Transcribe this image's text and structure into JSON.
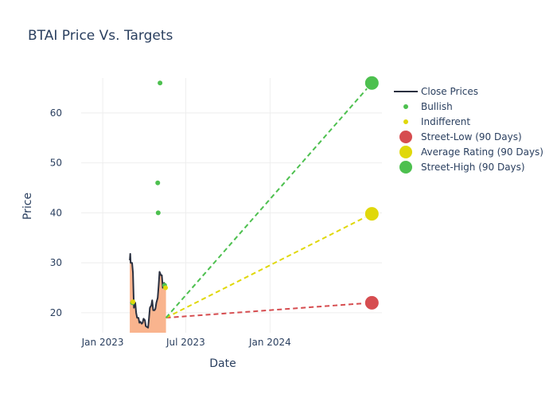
{
  "chart_data": {
    "type": "line",
    "title": "BTAI Price Vs. Targets",
    "xlabel": "Date",
    "ylabel": "Price",
    "xlim": [
      "2022-11-15",
      "2024-09-01"
    ],
    "ylim": [
      16,
      67
    ],
    "x_ticks": [
      {
        "date": "2023-01-01",
        "label": "Jan 2023"
      },
      {
        "date": "2023-07-01",
        "label": "Jul 2023"
      },
      {
        "date": "2024-01-01",
        "label": "Jan 2024"
      }
    ],
    "y_ticks": [
      20,
      30,
      40,
      50,
      60
    ],
    "grid": true,
    "legend_position": "right",
    "series": [
      {
        "name": "Close Prices",
        "kind": "line",
        "color": "#2a3040",
        "fill_color": "#f9b48e",
        "points": [
          [
            "2023-03-01",
            30.5
          ],
          [
            "2023-03-02",
            31.8
          ],
          [
            "2023-03-03",
            30.0
          ],
          [
            "2023-03-06",
            30.0
          ],
          [
            "2023-03-08",
            28.0
          ],
          [
            "2023-03-10",
            21.0
          ],
          [
            "2023-03-13",
            22.0
          ],
          [
            "2023-03-15",
            20.0
          ],
          [
            "2023-03-17",
            19.0
          ],
          [
            "2023-03-20",
            19.0
          ],
          [
            "2023-03-22",
            18.0
          ],
          [
            "2023-03-24",
            18.2
          ],
          [
            "2023-03-27",
            17.8
          ],
          [
            "2023-03-29",
            18.0
          ],
          [
            "2023-03-31",
            18.8
          ],
          [
            "2023-04-03",
            18.5
          ],
          [
            "2023-04-05",
            17.3
          ],
          [
            "2023-04-07",
            17.2
          ],
          [
            "2023-04-10",
            17.0
          ],
          [
            "2023-04-12",
            19.0
          ],
          [
            "2023-04-14",
            21.0
          ],
          [
            "2023-04-17",
            21.5
          ],
          [
            "2023-04-19",
            22.5
          ],
          [
            "2023-04-21",
            20.5
          ],
          [
            "2023-04-24",
            20.5
          ],
          [
            "2023-04-26",
            20.8
          ],
          [
            "2023-04-28",
            22.0
          ],
          [
            "2023-05-01",
            23.0
          ],
          [
            "2023-05-03",
            25.5
          ],
          [
            "2023-05-05",
            28.2
          ],
          [
            "2023-05-08",
            27.5
          ],
          [
            "2023-05-10",
            27.5
          ],
          [
            "2023-05-12",
            25.0
          ],
          [
            "2023-05-15",
            26.0
          ],
          [
            "2023-05-17",
            25.5
          ],
          [
            "2023-05-19",
            25.0
          ]
        ]
      },
      {
        "name": "Bullish",
        "kind": "markers",
        "color": "#4dc04f",
        "points": [
          [
            "2023-03-07",
            22.0
          ],
          [
            "2023-05-01",
            46.0
          ],
          [
            "2023-05-02",
            40.0
          ],
          [
            "2023-05-06",
            66.0
          ],
          [
            "2023-05-16",
            25.5
          ]
        ]
      },
      {
        "name": "Indifferent",
        "kind": "markers",
        "color": "#e0d80a",
        "points": [
          [
            "2023-03-08",
            22.2
          ],
          [
            "2023-05-18",
            25.0
          ]
        ]
      },
      {
        "name": "Street-Low (90 Days)",
        "kind": "target",
        "color": "#d64d50",
        "start": [
          "2023-05-19",
          19.0
        ],
        "end": [
          "2024-08-10",
          22.0
        ]
      },
      {
        "name": "Average Rating (90 Days)",
        "kind": "target",
        "color": "#e0d80a",
        "start": [
          "2023-05-19",
          19.0
        ],
        "end": [
          "2024-08-10",
          39.8
        ]
      },
      {
        "name": "Street-High (90 Days)",
        "kind": "target",
        "color": "#4dc04f",
        "start": [
          "2023-05-19",
          19.0
        ],
        "end": [
          "2024-08-10",
          66.0
        ]
      }
    ]
  }
}
